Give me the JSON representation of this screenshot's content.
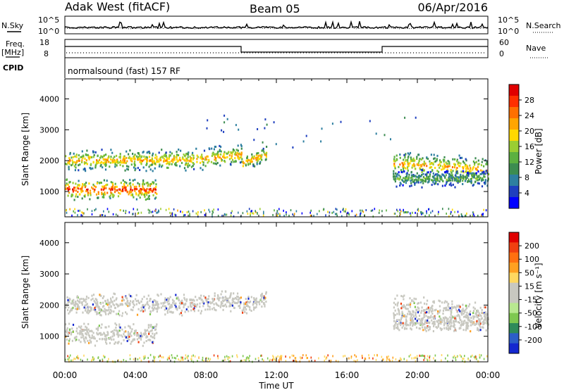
{
  "header": {
    "title": "Adak West (fitACF)",
    "beam": "Beam 05",
    "date": "06/Apr/2016"
  },
  "top_panels": {
    "nsky_label": "N.Sky",
    "nsearch_label": "N.Search",
    "nsky_ticks": [
      "10^5",
      "10^0"
    ],
    "nsky_ticks_right": [
      "10^5",
      "10^0"
    ],
    "freq_label": "Freq.",
    "freq_unit": "[MHz]",
    "freq_ticks": [
      "18",
      "8"
    ],
    "nave_label": "Nave",
    "nave_ticks": [
      "60",
      "0"
    ],
    "cpid_label": "CPID",
    "cpid_text": "normalsound (fast) 157 RF"
  },
  "chart_data": [
    {
      "type": "heatmap",
      "name": "power-panel",
      "ylabel": "Slant Range [km]",
      "ylim": [
        180,
        4650
      ],
      "yticks": [
        "4000",
        "3000",
        "2000",
        "1000"
      ],
      "xlim": [
        0,
        24
      ],
      "colorbar_label": "Power [dB]",
      "colorbar_ticks": [
        "28",
        "24",
        "20",
        "16",
        "12",
        "8",
        "4"
      ],
      "colorbar_colors": [
        "#0000ff",
        "#1f3fbf",
        "#2e7fa0",
        "#3c8c50",
        "#5cb040",
        "#9acd32",
        "#ffd800",
        "#ffa500",
        "#ff7000",
        "#ff3000",
        "#e00000"
      ],
      "bands": [
        {
          "t_start": 0.0,
          "t_end": 5.2,
          "r_mid": 1050,
          "r_width": 380,
          "level": "high"
        },
        {
          "t_start": 0.0,
          "t_end": 10.0,
          "r_mid": 2000,
          "r_width": 380,
          "level": "mid"
        },
        {
          "t_start": 10.0,
          "t_end": 11.4,
          "r_mid": 1900,
          "r_width": 300,
          "level": "mid"
        },
        {
          "t_start": 18.6,
          "t_end": 24.0,
          "r_mid": 1900,
          "r_width": 450,
          "level": "mid"
        },
        {
          "t_start": 18.6,
          "t_end": 24.0,
          "r_mid": 1400,
          "r_width": 300,
          "level": "low"
        }
      ]
    },
    {
      "type": "heatmap",
      "name": "velocity-panel",
      "ylabel": "Slant Range [km]",
      "ylim": [
        180,
        4650
      ],
      "yticks": [
        "4000",
        "3000",
        "2000",
        "1000"
      ],
      "xlim": [
        0,
        24
      ],
      "xlabel": "Time UT",
      "xticks": [
        "00:00",
        "04:00",
        "08:00",
        "12:00",
        "16:00",
        "20:00",
        "00:00"
      ],
      "colorbar_label": "Velocity [m s⁻¹]",
      "colorbar_ticks": [
        "200",
        "100",
        "50",
        "15",
        "-15",
        "-50",
        "-100",
        "-200"
      ],
      "colorbar_colors": [
        "#1428d0",
        "#2c5ec8",
        "#2e8a5a",
        "#7ec850",
        "#b8e890",
        "#c8c8c0",
        "#c8c8c0",
        "#ffd860",
        "#ffa020",
        "#ff7010",
        "#f04010",
        "#e00000"
      ]
    }
  ]
}
